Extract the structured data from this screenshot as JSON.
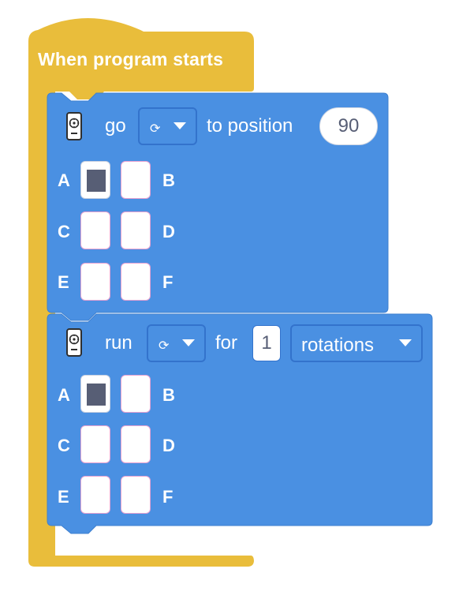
{
  "hat": {
    "title": "When program starts"
  },
  "blocks": [
    {
      "icon": "motor-icon",
      "verb": "go",
      "direction_icon": "rotate-icon",
      "suffix": "to position",
      "value": "90",
      "ports": {
        "A": {
          "label": "A",
          "selected": true
        },
        "B": {
          "label": "B",
          "selected": false
        },
        "C": {
          "label": "C",
          "selected": false
        },
        "D": {
          "label": "D",
          "selected": false
        },
        "E": {
          "label": "E",
          "selected": false
        },
        "F": {
          "label": "F",
          "selected": false
        }
      }
    },
    {
      "icon": "motor-icon",
      "verb": "run",
      "direction_icon": "rotate-icon",
      "middle": "for",
      "value": "1",
      "unit": "rotations",
      "ports": {
        "A": {
          "label": "A",
          "selected": true
        },
        "B": {
          "label": "B",
          "selected": false
        },
        "C": {
          "label": "C",
          "selected": false
        },
        "D": {
          "label": "D",
          "selected": false
        },
        "E": {
          "label": "E",
          "selected": false
        },
        "F": {
          "label": "F",
          "selected": false
        }
      }
    }
  ],
  "colors": {
    "event": "#e9bd3b",
    "motion": "#4a90e2",
    "motion_dark": "#3373cc",
    "port_fill": "#575e75"
  }
}
